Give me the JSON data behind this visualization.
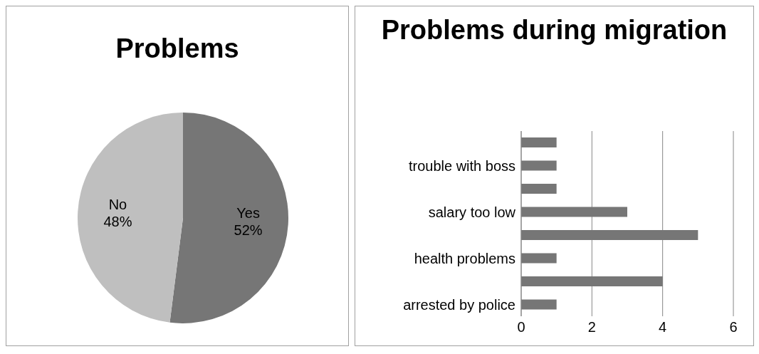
{
  "chart_data": [
    {
      "type": "pie",
      "title": "Problems",
      "categories": [
        "Yes",
        "No"
      ],
      "values": [
        52,
        48
      ],
      "colors": [
        "#767676",
        "#bfbfbf"
      ],
      "value_labels": [
        "52%",
        "48%"
      ],
      "legend": false
    },
    {
      "type": "bar",
      "title": "Problems during migration",
      "orientation": "horizontal",
      "categories": [
        null,
        "trouble with boss",
        null,
        "salary too low",
        null,
        "health problems",
        null,
        "arrested by police"
      ],
      "values": [
        1,
        1,
        1,
        3,
        5,
        1,
        4,
        1
      ],
      "color": "#767676",
      "xlim": [
        0,
        6
      ],
      "xticks": [
        0,
        2,
        4,
        6
      ],
      "grid": "x",
      "legend": false
    }
  ]
}
